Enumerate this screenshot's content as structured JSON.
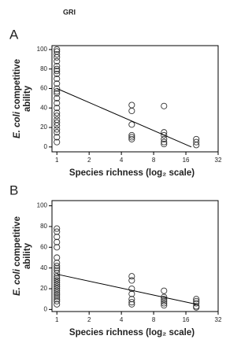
{
  "figure_title": "GRI",
  "chart_data": [
    {
      "type": "scatter",
      "panel_label": "A",
      "ylabel": [
        "E. coli competitive",
        "ability"
      ],
      "xlabel": "Species richness (log₂ scale)",
      "xscale": "log2",
      "xlim": [
        0.9,
        32
      ],
      "xticks": [
        1,
        2,
        4,
        8,
        16,
        32
      ],
      "ylim": [
        -5,
        104
      ],
      "yticks": [
        0,
        20,
        40,
        60,
        80,
        100
      ],
      "grid": false,
      "series": [
        {
          "marker": "circle",
          "color": "#333333",
          "x": [
            1,
            1,
            1,
            1,
            1,
            1,
            1,
            1,
            1,
            1,
            1,
            1,
            1,
            1,
            1,
            1,
            1,
            1,
            1,
            1,
            1,
            1,
            1,
            1,
            1,
            1,
            5,
            5,
            5,
            5,
            5,
            5,
            10,
            10,
            10,
            10,
            10,
            10,
            20,
            20,
            20
          ],
          "values": [
            100,
            98,
            95,
            92,
            88,
            83,
            80,
            78,
            75,
            70,
            65,
            60,
            57,
            55,
            50,
            45,
            40,
            35,
            32,
            28,
            25,
            22,
            18,
            15,
            10,
            5,
            43,
            37,
            23,
            12,
            10,
            8,
            42,
            15,
            12,
            8,
            5,
            3,
            8,
            5,
            2
          ]
        },
        {
          "marker": "line",
          "color": "#000000",
          "x": [
            1,
            18
          ],
          "values": [
            60,
            0
          ]
        }
      ]
    },
    {
      "type": "scatter",
      "panel_label": "B",
      "ylabel": [
        "E. coli competitive",
        "ability"
      ],
      "xlabel": "Species richness (log₂ scale)",
      "xscale": "log2",
      "xlim": [
        0.9,
        32
      ],
      "xticks": [
        1,
        2,
        4,
        8,
        16,
        32
      ],
      "ylim": [
        -2,
        105
      ],
      "yticks": [
        0,
        20,
        40,
        60,
        80,
        100
      ],
      "grid": false,
      "series": [
        {
          "marker": "circle",
          "color": "#333333",
          "x": [
            1,
            1,
            1,
            1,
            1,
            1,
            1,
            1,
            1,
            1,
            1,
            1,
            1,
            1,
            1,
            1,
            1,
            1,
            1,
            1,
            1,
            1,
            1,
            1,
            1,
            5,
            5,
            5,
            5,
            5,
            5,
            5,
            10,
            10,
            10,
            10,
            10,
            10,
            20,
            20,
            20,
            20,
            20
          ],
          "values": [
            78,
            75,
            70,
            65,
            60,
            50,
            45,
            42,
            40,
            38,
            35,
            32,
            30,
            28,
            26,
            24,
            22,
            20,
            18,
            16,
            14,
            12,
            10,
            8,
            5,
            32,
            28,
            20,
            15,
            10,
            7,
            5,
            18,
            12,
            10,
            8,
            6,
            4,
            10,
            8,
            6,
            3,
            2
          ]
        },
        {
          "marker": "line",
          "color": "#000000",
          "x": [
            1,
            20
          ],
          "values": [
            34,
            5
          ]
        }
      ]
    }
  ]
}
